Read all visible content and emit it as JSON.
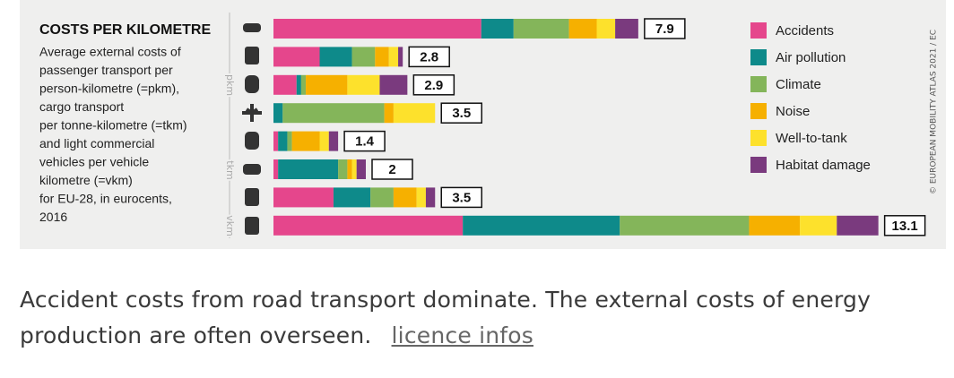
{
  "chart_data": {
    "type": "stacked-bar",
    "title": "COSTS PER KILOMETRE",
    "subtitle": [
      "Average external costs of",
      "passenger transport per",
      "person-kilometre (=pkm),",
      "cargo transport",
      "per tonne-kilometre (=tkm)",
      "and light commercial",
      "vehicles per vehicle",
      "kilometre (=vkm)",
      "for EU-28, in eurocents,",
      "2016"
    ],
    "groups": [
      "pkm",
      "tkm",
      "vkm"
    ],
    "series": [
      {
        "name": "Accidents",
        "color": "#e5468c",
        "values": [
          4.5,
          1.0,
          0.5,
          0,
          0.1,
          0.1,
          1.3,
          4.1
        ]
      },
      {
        "name": "Air pollution",
        "color": "#0e8a8a",
        "values": [
          0.7,
          0.7,
          0.1,
          0.2,
          0.2,
          1.3,
          0.8,
          3.4
        ]
      },
      {
        "name": "Climate",
        "color": "#84b55a",
        "values": [
          1.2,
          0.5,
          0.1,
          2.2,
          0.1,
          0.2,
          0.5,
          2.8
        ]
      },
      {
        "name": "Noise",
        "color": "#f6b000",
        "values": [
          0.6,
          0.3,
          0.9,
          0.2,
          0.6,
          0.1,
          0.5,
          1.1
        ]
      },
      {
        "name": "Well-to-tank",
        "color": "#fde12c",
        "values": [
          0.4,
          0.2,
          0.7,
          0.9,
          0.2,
          0.1,
          0.2,
          0.8
        ]
      },
      {
        "name": "Habitat damage",
        "color": "#7a3a7e",
        "values": [
          0.5,
          0.1,
          0.6,
          0,
          0.2,
          0.2,
          0.2,
          0.9
        ]
      }
    ],
    "totals": [
      7.9,
      2.8,
      2.9,
      3.5,
      1.4,
      2.0,
      3.5,
      13.1
    ],
    "credit": "© EUROPEAN MOBILITY ATLAS 2021 / EC"
  },
  "caption": {
    "text": "Accident costs from road transport dominate. The external costs of energy",
    "text2": "production are often overseen.",
    "link": "licence infos"
  }
}
